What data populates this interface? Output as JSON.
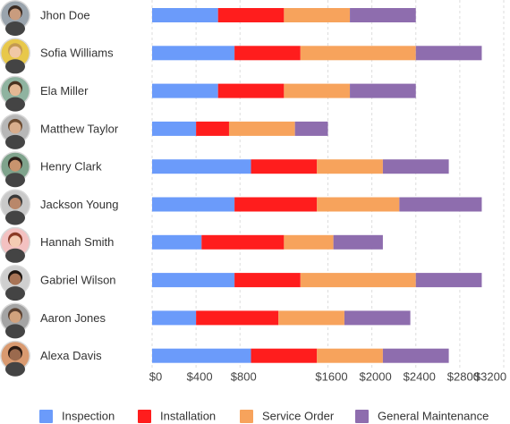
{
  "chart_data": {
    "type": "bar",
    "orientation": "horizontal",
    "stacked": true,
    "categories": [
      "Jhon Doe",
      "Sofia Williams",
      "Ela Miller",
      "Matthew Taylor",
      "Henry Clark",
      "Jackson Young",
      "Hannah Smith",
      "Gabriel Wilson",
      "Aaron Jones",
      "Alexa Davis"
    ],
    "series": [
      {
        "name": "Inspection",
        "color": "#6b9bfa",
        "values": [
          600,
          750,
          600,
          400,
          900,
          750,
          450,
          750,
          400,
          900
        ]
      },
      {
        "name": "Installation",
        "color": "#ff1d1d",
        "values": [
          600,
          600,
          600,
          300,
          600,
          750,
          750,
          600,
          750,
          600
        ]
      },
      {
        "name": "Service Order",
        "color": "#f7a35c",
        "values": [
          600,
          1050,
          600,
          600,
          600,
          750,
          450,
          1050,
          600,
          600
        ]
      },
      {
        "name": "General Maintenance",
        "color": "#8e6dae",
        "values": [
          600,
          600,
          600,
          300,
          600,
          750,
          450,
          600,
          600,
          600
        ]
      }
    ],
    "xlim": [
      0,
      3200
    ],
    "xticks": [
      {
        "value": 0,
        "label": "$0"
      },
      {
        "value": 400,
        "label": "$400"
      },
      {
        "value": 800,
        "label": "$800"
      },
      {
        "value": 1600,
        "label": "$1600"
      },
      {
        "value": 2000,
        "label": "$2000"
      },
      {
        "value": 2400,
        "label": "$2400"
      },
      {
        "value": 2800,
        "label": "$2800"
      },
      {
        "value": 3200,
        "label": "$3200"
      }
    ],
    "grid": true,
    "legend": "bottom"
  }
}
